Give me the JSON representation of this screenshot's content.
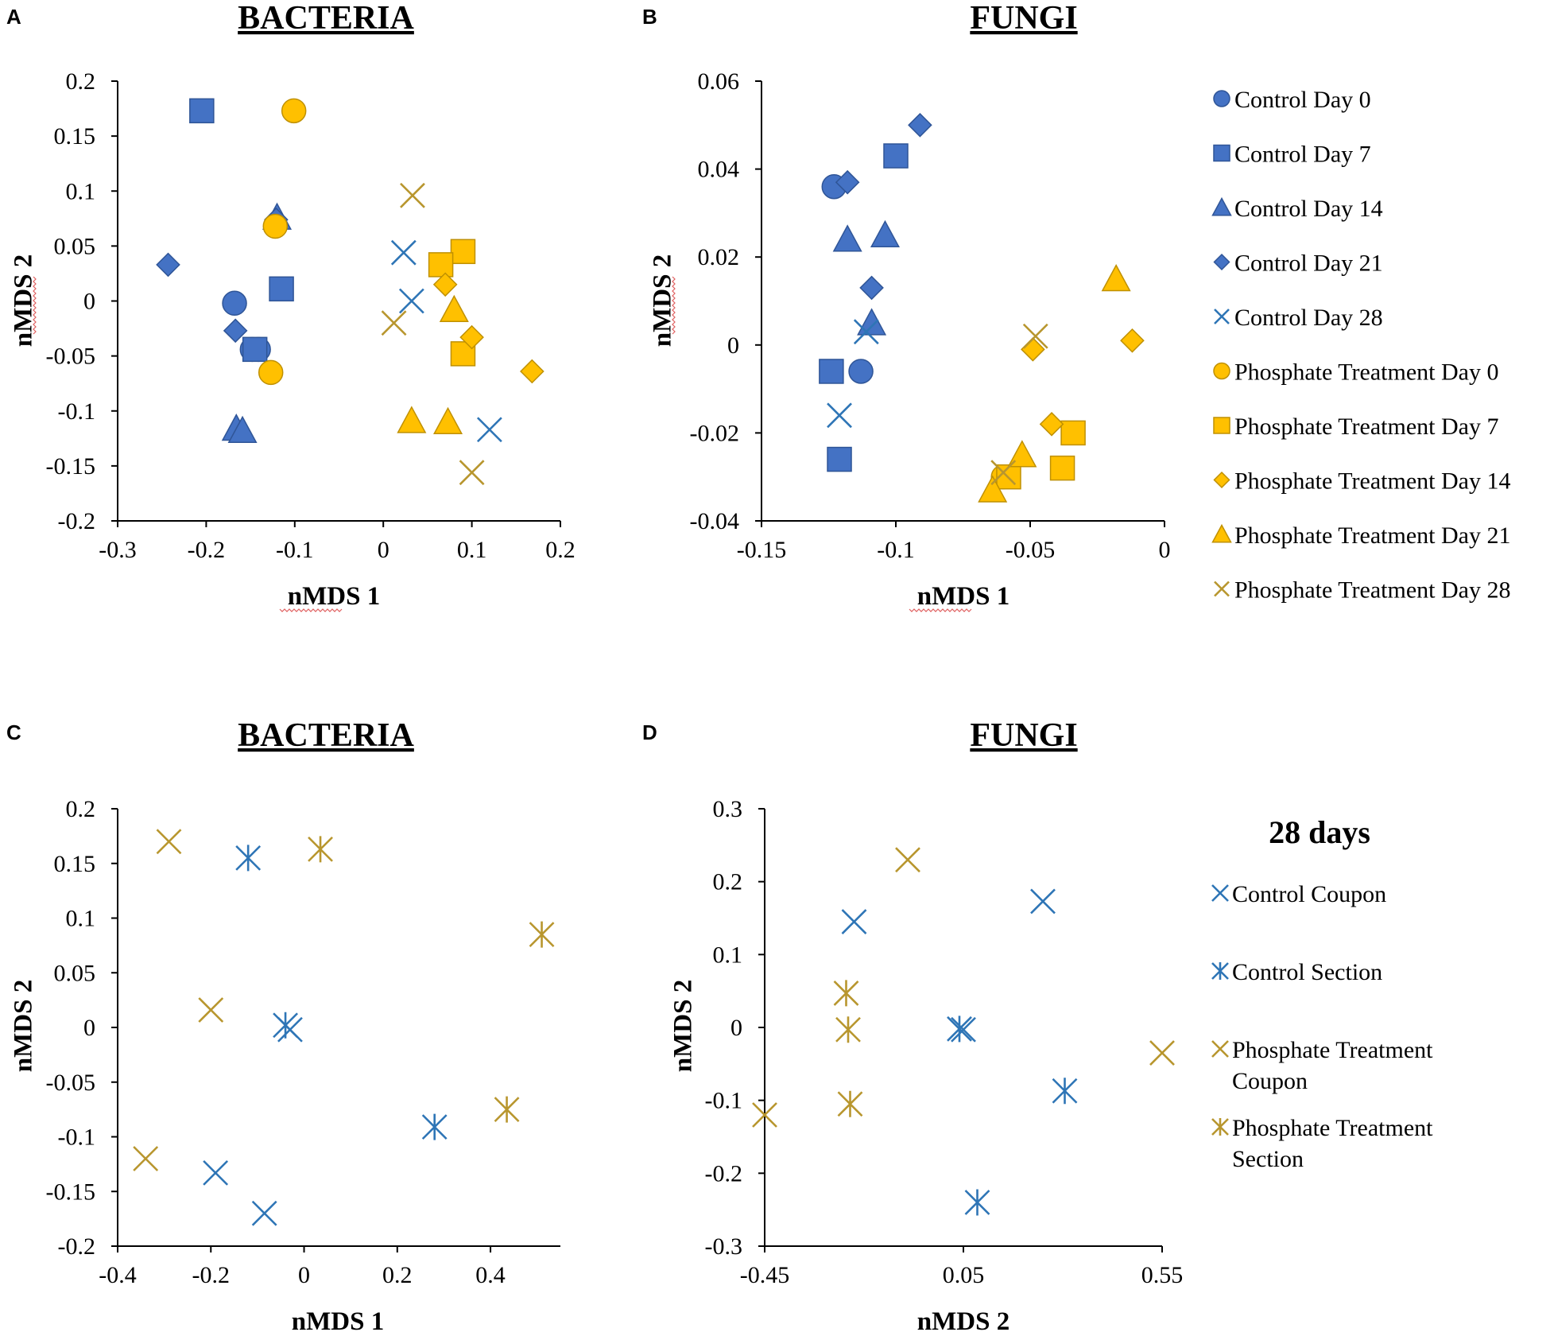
{
  "colors": {
    "control_fill": "#4472C4",
    "control_stroke": "#2F5597",
    "control_line": "#2E75B6",
    "phosphate_fill": "#FFC000",
    "phosphate_stroke": "#BF9000",
    "phosphate_line": "#B8962E",
    "axis": "#000000",
    "squiggle": "#E06060"
  },
  "chart_data": [
    {
      "panel": "A",
      "type": "scatter",
      "title": "BACTERIA",
      "xlabel": "nMDS 1",
      "ylabel": "nMDS 2",
      "xlim": [
        -0.3,
        0.2
      ],
      "ylim": [
        -0.2,
        0.2
      ],
      "xticks": [
        -0.3,
        -0.2,
        -0.1,
        0,
        0.1,
        0.2
      ],
      "yticks": [
        -0.2,
        -0.15,
        -0.1,
        -0.05,
        0,
        0.05,
        0.1,
        0.15,
        0.2
      ],
      "xtick_labels": [
        "-0.3",
        "-0.2",
        "-0.1",
        "0",
        "0.1",
        "0.2"
      ],
      "ytick_labels": [
        "-0.2",
        "-0.15",
        "-0.1",
        "-0.05",
        "0",
        "0.05",
        "0.1",
        "0.15",
        "0.2"
      ],
      "series": [
        {
          "name": "Control Day 0",
          "marker": "circle",
          "group": "control",
          "points": [
            [
              -0.168,
              -0.002
            ],
            [
              -0.148,
              -0.044
            ],
            [
              -0.141,
              -0.044
            ]
          ]
        },
        {
          "name": "Control Day 7",
          "marker": "square",
          "group": "control",
          "points": [
            [
              -0.205,
              0.173
            ],
            [
              -0.115,
              0.011
            ],
            [
              -0.145,
              -0.044
            ]
          ]
        },
        {
          "name": "Control Day 14",
          "marker": "triangle",
          "group": "control",
          "points": [
            [
              -0.12,
              0.076
            ],
            [
              -0.166,
              -0.116
            ],
            [
              -0.159,
              -0.118
            ]
          ]
        },
        {
          "name": "Control Day 21",
          "marker": "diamond",
          "group": "control",
          "points": [
            [
              -0.243,
              0.033
            ],
            [
              -0.167,
              -0.027
            ],
            [
              -0.121,
              0.074
            ]
          ]
        },
        {
          "name": "Control Day 28",
          "marker": "x",
          "group": "control",
          "points": [
            [
              0.023,
              0.044
            ],
            [
              0.032,
              0.0
            ],
            [
              0.12,
              -0.117
            ]
          ]
        },
        {
          "name": "Phosphate Treatment Day 0",
          "marker": "circle",
          "group": "phosphate",
          "points": [
            [
              -0.101,
              0.173
            ],
            [
              -0.122,
              0.068
            ],
            [
              -0.127,
              -0.065
            ]
          ]
        },
        {
          "name": "Phosphate Treatment Day 7",
          "marker": "square",
          "group": "phosphate",
          "points": [
            [
              0.09,
              0.045
            ],
            [
              0.065,
              0.033
            ],
            [
              0.09,
              -0.048
            ]
          ]
        },
        {
          "name": "Phosphate Treatment Day 14",
          "marker": "diamond",
          "group": "phosphate",
          "points": [
            [
              0.07,
              0.015
            ],
            [
              0.1,
              -0.033
            ],
            [
              0.168,
              -0.064
            ]
          ]
        },
        {
          "name": "Phosphate Treatment Day 21",
          "marker": "triangle",
          "group": "phosphate",
          "points": [
            [
              0.08,
              -0.008
            ],
            [
              0.032,
              -0.109
            ],
            [
              0.073,
              -0.11
            ]
          ]
        },
        {
          "name": "Phosphate Treatment Day 28",
          "marker": "x",
          "group": "phosphate",
          "points": [
            [
              0.033,
              0.096
            ],
            [
              0.012,
              -0.02
            ],
            [
              0.1,
              -0.156
            ]
          ]
        }
      ]
    },
    {
      "panel": "B",
      "type": "scatter",
      "title": "FUNGI",
      "xlabel": "nMDS 1",
      "ylabel": "nMDS 2",
      "xlim": [
        -0.15,
        0
      ],
      "ylim": [
        -0.04,
        0.06
      ],
      "xticks": [
        -0.15,
        -0.1,
        -0.05,
        0
      ],
      "yticks": [
        -0.04,
        -0.02,
        0,
        0.02,
        0.04,
        0.06
      ],
      "xtick_labels": [
        "-0.15",
        "-0.1",
        "-0.05",
        "0"
      ],
      "ytick_labels": [
        "-0.04",
        "-0.02",
        "0",
        "0.02",
        "0.04",
        "0.06"
      ],
      "series": [
        {
          "name": "Control Day 0",
          "marker": "circle",
          "group": "control",
          "points": [
            [
              -0.123,
              0.036
            ],
            [
              -0.113,
              -0.006
            ]
          ]
        },
        {
          "name": "Control Day 7",
          "marker": "square",
          "group": "control",
          "points": [
            [
              -0.1,
              0.043
            ],
            [
              -0.124,
              -0.006
            ],
            [
              -0.121,
              -0.026
            ]
          ]
        },
        {
          "name": "Control Day 14",
          "marker": "triangle",
          "group": "control",
          "points": [
            [
              -0.118,
              0.024
            ],
            [
              -0.104,
              0.025
            ],
            [
              -0.109,
              0.005
            ]
          ]
        },
        {
          "name": "Control Day 21",
          "marker": "diamond",
          "group": "control",
          "points": [
            [
              -0.091,
              0.05
            ],
            [
              -0.118,
              0.037
            ],
            [
              -0.109,
              0.013
            ]
          ]
        },
        {
          "name": "Control Day 28",
          "marker": "x",
          "group": "control",
          "points": [
            [
              -0.111,
              0.003
            ],
            [
              -0.121,
              -0.016
            ]
          ]
        },
        {
          "name": "Phosphate Treatment Day 0",
          "marker": "circle",
          "group": "phosphate",
          "points": [
            [
              -0.06,
              -0.03
            ]
          ]
        },
        {
          "name": "Phosphate Treatment Day 7",
          "marker": "square",
          "group": "phosphate",
          "points": [
            [
              -0.034,
              -0.02
            ],
            [
              -0.038,
              -0.028
            ],
            [
              -0.058,
              -0.03
            ]
          ]
        },
        {
          "name": "Phosphate Treatment Day 14",
          "marker": "diamond",
          "group": "phosphate",
          "points": [
            [
              -0.012,
              0.001
            ],
            [
              -0.049,
              -0.001
            ],
            [
              -0.042,
              -0.018
            ]
          ]
        },
        {
          "name": "Phosphate Treatment Day 21",
          "marker": "triangle",
          "group": "phosphate",
          "points": [
            [
              -0.018,
              0.015
            ],
            [
              -0.053,
              -0.025
            ],
            [
              -0.064,
              -0.033
            ]
          ]
        },
        {
          "name": "Phosphate Treatment Day 28",
          "marker": "x",
          "group": "phosphate",
          "points": [
            [
              -0.048,
              0.002
            ],
            [
              -0.06,
              -0.029
            ]
          ]
        }
      ]
    },
    {
      "panel": "C",
      "type": "scatter",
      "title": "BACTERIA",
      "xlabel": "nMDS 1",
      "ylabel": "nMDS 2",
      "xlim": [
        -0.4,
        0.55
      ],
      "ylim": [
        -0.2,
        0.2
      ],
      "xticks": [
        -0.4,
        -0.2,
        0,
        0.2,
        0.4
      ],
      "yticks": [
        -0.2,
        -0.15,
        -0.1,
        -0.05,
        0,
        0.05,
        0.1,
        0.15,
        0.2
      ],
      "xtick_labels": [
        "-0.4",
        "-0.2",
        "0",
        "0.2",
        "0.4"
      ],
      "ytick_labels": [
        "-0.2",
        "-0.15",
        "-0.1",
        "-0.05",
        "0",
        "0.05",
        "0.1",
        "0.15",
        "0.2"
      ],
      "series": [
        {
          "name": "Control Coupon",
          "marker": "x",
          "group": "control",
          "points": [
            [
              -0.03,
              -0.002
            ],
            [
              -0.19,
              -0.133
            ],
            [
              -0.085,
              -0.17
            ]
          ]
        },
        {
          "name": "Control Section",
          "marker": "asterisk",
          "group": "control",
          "points": [
            [
              -0.12,
              0.155
            ],
            [
              -0.04,
              0.002
            ],
            [
              0.28,
              -0.091
            ]
          ]
        },
        {
          "name": "Phosphate Treatment Coupon",
          "marker": "x",
          "group": "phosphate",
          "points": [
            [
              -0.29,
              0.17
            ],
            [
              -0.2,
              0.016
            ],
            [
              -0.34,
              -0.12
            ]
          ]
        },
        {
          "name": "Phosphate Treatment Section",
          "marker": "asterisk",
          "group": "phosphate",
          "points": [
            [
              0.035,
              0.163
            ],
            [
              0.51,
              0.085
            ],
            [
              0.435,
              -0.075
            ]
          ]
        }
      ]
    },
    {
      "panel": "D",
      "type": "scatter",
      "title": "FUNGI",
      "xlabel": "nMDS 2",
      "ylabel": "nMDS 2",
      "xlim": [
        -0.45,
        0.55
      ],
      "ylim": [
        -0.3,
        0.3
      ],
      "xticks": [
        -0.45,
        0.05,
        0.55
      ],
      "yticks": [
        -0.3,
        -0.2,
        -0.1,
        0,
        0.1,
        0.2,
        0.3
      ],
      "xtick_labels": [
        "-0.45",
        "0.05",
        "0.55"
      ],
      "ytick_labels": [
        "-0.3",
        "-0.2",
        "-0.1",
        "0",
        "0.1",
        "0.2",
        "0.3"
      ],
      "series": [
        {
          "name": "Control Coupon",
          "marker": "x",
          "group": "control",
          "points": [
            [
              -0.225,
              0.145
            ],
            [
              0.25,
              0.173
            ],
            [
              0.05,
              -0.003
            ]
          ]
        },
        {
          "name": "Control Section",
          "marker": "asterisk",
          "group": "control",
          "points": [
            [
              0.04,
              -0.002
            ],
            [
              0.305,
              -0.087
            ],
            [
              0.085,
              -0.24
            ]
          ]
        },
        {
          "name": "Phosphate Treatment Coupon",
          "marker": "x",
          "group": "phosphate",
          "points": [
            [
              -0.09,
              0.23
            ],
            [
              -0.45,
              -0.12
            ],
            [
              0.55,
              -0.035
            ]
          ]
        },
        {
          "name": "Phosphate Treatment Section",
          "marker": "asterisk",
          "group": "phosphate",
          "points": [
            [
              -0.245,
              0.047
            ],
            [
              -0.24,
              -0.003
            ],
            [
              -0.235,
              -0.105
            ]
          ]
        }
      ]
    }
  ],
  "legend_top": {
    "items": [
      {
        "label": "Control Day 0",
        "marker": "circle",
        "group": "control"
      },
      {
        "label": "Control Day 7",
        "marker": "square",
        "group": "control"
      },
      {
        "label": "Control Day 14",
        "marker": "triangle",
        "group": "control"
      },
      {
        "label": "Control Day 21",
        "marker": "diamond",
        "group": "control"
      },
      {
        "label": "Control Day 28",
        "marker": "x",
        "group": "control"
      },
      {
        "label": "Phosphate Treatment Day 0",
        "marker": "circle",
        "group": "phosphate"
      },
      {
        "label": "Phosphate Treatment Day 7",
        "marker": "square",
        "group": "phosphate"
      },
      {
        "label": "Phosphate Treatment Day 14",
        "marker": "diamond",
        "group": "phosphate"
      },
      {
        "label": "Phosphate Treatment Day 21",
        "marker": "triangle",
        "group": "phosphate"
      },
      {
        "label": "Phosphate Treatment Day 28",
        "marker": "x",
        "group": "phosphate"
      }
    ]
  },
  "legend_bottom": {
    "heading": "28 days",
    "items": [
      {
        "lines": [
          "Control Coupon"
        ],
        "marker": "x",
        "group": "control"
      },
      {
        "lines": [
          "Control Section"
        ],
        "marker": "asterisk",
        "group": "control"
      },
      {
        "lines": [
          "Phosphate Treatment",
          "Coupon"
        ],
        "marker": "x",
        "group": "phosphate"
      },
      {
        "lines": [
          "Phosphate Treatment",
          "Section"
        ],
        "marker": "asterisk",
        "group": "phosphate"
      }
    ]
  }
}
